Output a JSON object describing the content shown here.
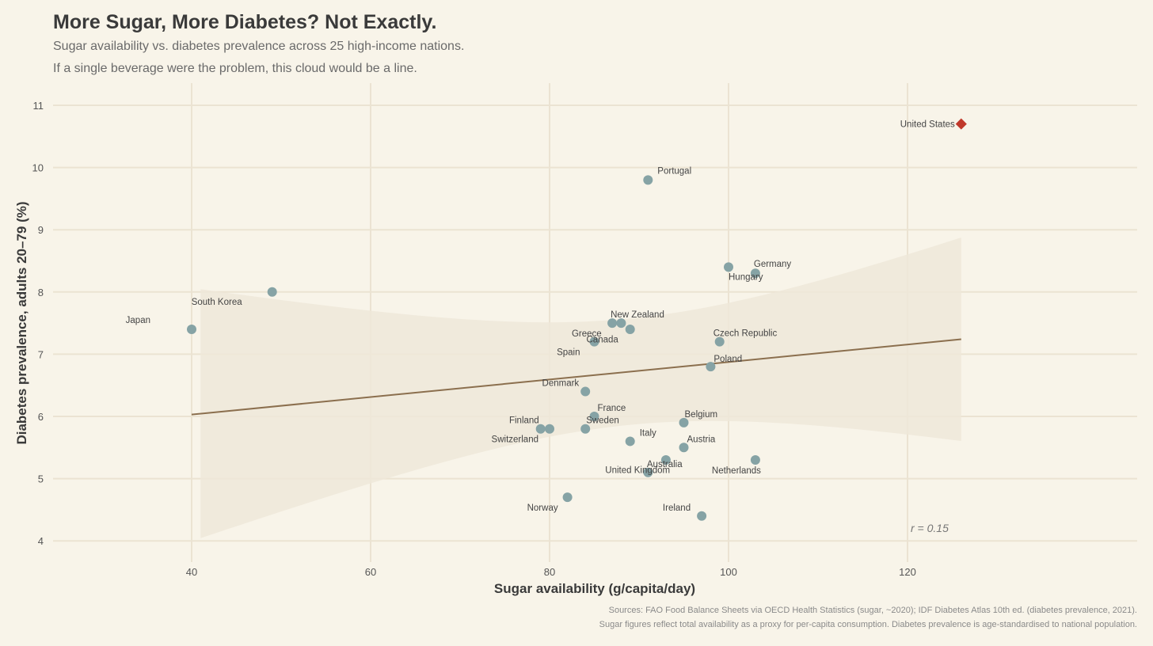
{
  "chart_data": {
    "type": "scatter",
    "title": "More Sugar, More Diabetes? Not Exactly.",
    "subtitle": "Sugar availability vs. diabetes prevalence across 25 high-income nations.",
    "subtitle2": "If a single beverage were the problem, this cloud would be a line.",
    "xlabel": "Sugar availability (g/capita/day)",
    "ylabel": "Diabetes prevalence, adults 20–79 (%)",
    "xlim": [
      26,
      143
    ],
    "ylim": [
      3.7,
      11.3
    ],
    "xticks": [
      40,
      60,
      80,
      100,
      120
    ],
    "yticks": [
      4,
      5,
      6,
      7,
      8,
      9,
      10,
      11
    ],
    "grid": true,
    "annotation": "r = 0.15",
    "trend": {
      "x_start": 40,
      "x_end": 126,
      "y_start": 6.03,
      "y_end": 7.24,
      "ci_x_start": 41,
      "ci_upper_start": 8.05,
      "ci_lower_start": 4.05,
      "ci_upper_end": 8.87,
      "ci_lower_end": 5.6
    },
    "colors": {
      "point": "#86a3a5",
      "highlight": "#c0392b",
      "trend": "#8b6f4e",
      "band": "#efe7d9",
      "grid": "#ebe3d2"
    },
    "points": [
      {
        "country": "United States",
        "x": 126,
        "y": 10.7,
        "highlight": true,
        "lx": -8,
        "ly": 0,
        "anchor": "end"
      },
      {
        "country": "Portugal",
        "x": 91,
        "y": 9.8,
        "lx": 12,
        "ly": -12,
        "anchor": "start"
      },
      {
        "country": "Hungary",
        "x": 100,
        "y": 8.4,
        "lx": 0,
        "ly": 12,
        "anchor": "start"
      },
      {
        "country": "Germany",
        "x": 103,
        "y": 8.3,
        "lx": -2,
        "ly": -12,
        "anchor": "start"
      },
      {
        "country": "South Korea",
        "x": 49,
        "y": 8.0,
        "lx": -102,
        "ly": 12,
        "anchor": "start"
      },
      {
        "country": "Japan",
        "x": 40,
        "y": 7.4,
        "lx": -52,
        "ly": -12,
        "anchor": "end"
      },
      {
        "country": "New Zealand",
        "x": 87,
        "y": 7.5,
        "lx": -2,
        "ly": -11,
        "anchor": "start"
      },
      {
        "country": "New Zealand 2",
        "x": 88,
        "y": 7.5,
        "nolabel": true
      },
      {
        "country": "Greece",
        "x": 89,
        "y": 7.4,
        "lx": -36,
        "ly": 5,
        "anchor": "end",
        "label": "Greece"
      },
      {
        "country": "Canada",
        "x": 85,
        "y": 7.2,
        "lx": -10,
        "ly": -3,
        "anchor": "start"
      },
      {
        "country": "Spain",
        "x": 85,
        "y": 7.2,
        "lx": -18,
        "ly": 13,
        "anchor": "end",
        "label": "Spain",
        "hidepoint": true
      },
      {
        "country": "Czech Republic",
        "x": 99,
        "y": 7.2,
        "lx": -8,
        "ly": -11,
        "anchor": "start"
      },
      {
        "country": "Poland",
        "x": 98,
        "y": 6.8,
        "lx": 4,
        "ly": -10,
        "anchor": "start"
      },
      {
        "country": "Denmark",
        "x": 84,
        "y": 6.4,
        "lx": -8,
        "ly": -11,
        "anchor": "end"
      },
      {
        "country": "France",
        "x": 85,
        "y": 6.0,
        "lx": 4,
        "ly": -11,
        "anchor": "start"
      },
      {
        "country": "Finland",
        "x": 79,
        "y": 5.8,
        "lx": -2,
        "ly": -11,
        "anchor": "end"
      },
      {
        "country": "Switzerland",
        "x": 80,
        "y": 5.8,
        "lx": -14,
        "ly": 13,
        "anchor": "end"
      },
      {
        "country": "Sweden",
        "x": 84,
        "y": 5.8,
        "lx": 1,
        "ly": -11,
        "anchor": "start"
      },
      {
        "country": "Italy",
        "x": 89,
        "y": 5.6,
        "lx": 12,
        "ly": -11,
        "anchor": "start"
      },
      {
        "country": "Belgium",
        "x": 95,
        "y": 5.9,
        "lx": 1,
        "ly": -11,
        "anchor": "start"
      },
      {
        "country": "Austria",
        "x": 95,
        "y": 5.5,
        "lx": 4,
        "ly": -11,
        "anchor": "start"
      },
      {
        "country": "Australia",
        "x": 93,
        "y": 5.3,
        "lx": -24,
        "ly": 5,
        "anchor": "start"
      },
      {
        "country": "United Kingdom",
        "x": 91,
        "y": 5.1,
        "lx": -54,
        "ly": -3,
        "anchor": "start"
      },
      {
        "country": "Netherlands",
        "x": 103,
        "y": 5.3,
        "lx": -55,
        "ly": 13,
        "anchor": "start"
      },
      {
        "country": "Norway",
        "x": 82,
        "y": 4.7,
        "lx": -12,
        "ly": 13,
        "anchor": "end"
      },
      {
        "country": "Ireland",
        "x": 97,
        "y": 4.4,
        "lx": -14,
        "ly": -11,
        "anchor": "end"
      }
    ]
  },
  "captions": {
    "line1": "Sources: FAO Food Balance Sheets via OECD Health Statistics (sugar, ~2020); IDF Diabetes Atlas 10th ed. (diabetes prevalence, 2021).",
    "line2": "Sugar figures reflect total availability as a proxy for per-capita consumption. Diabetes prevalence is age-standardised to national population."
  }
}
